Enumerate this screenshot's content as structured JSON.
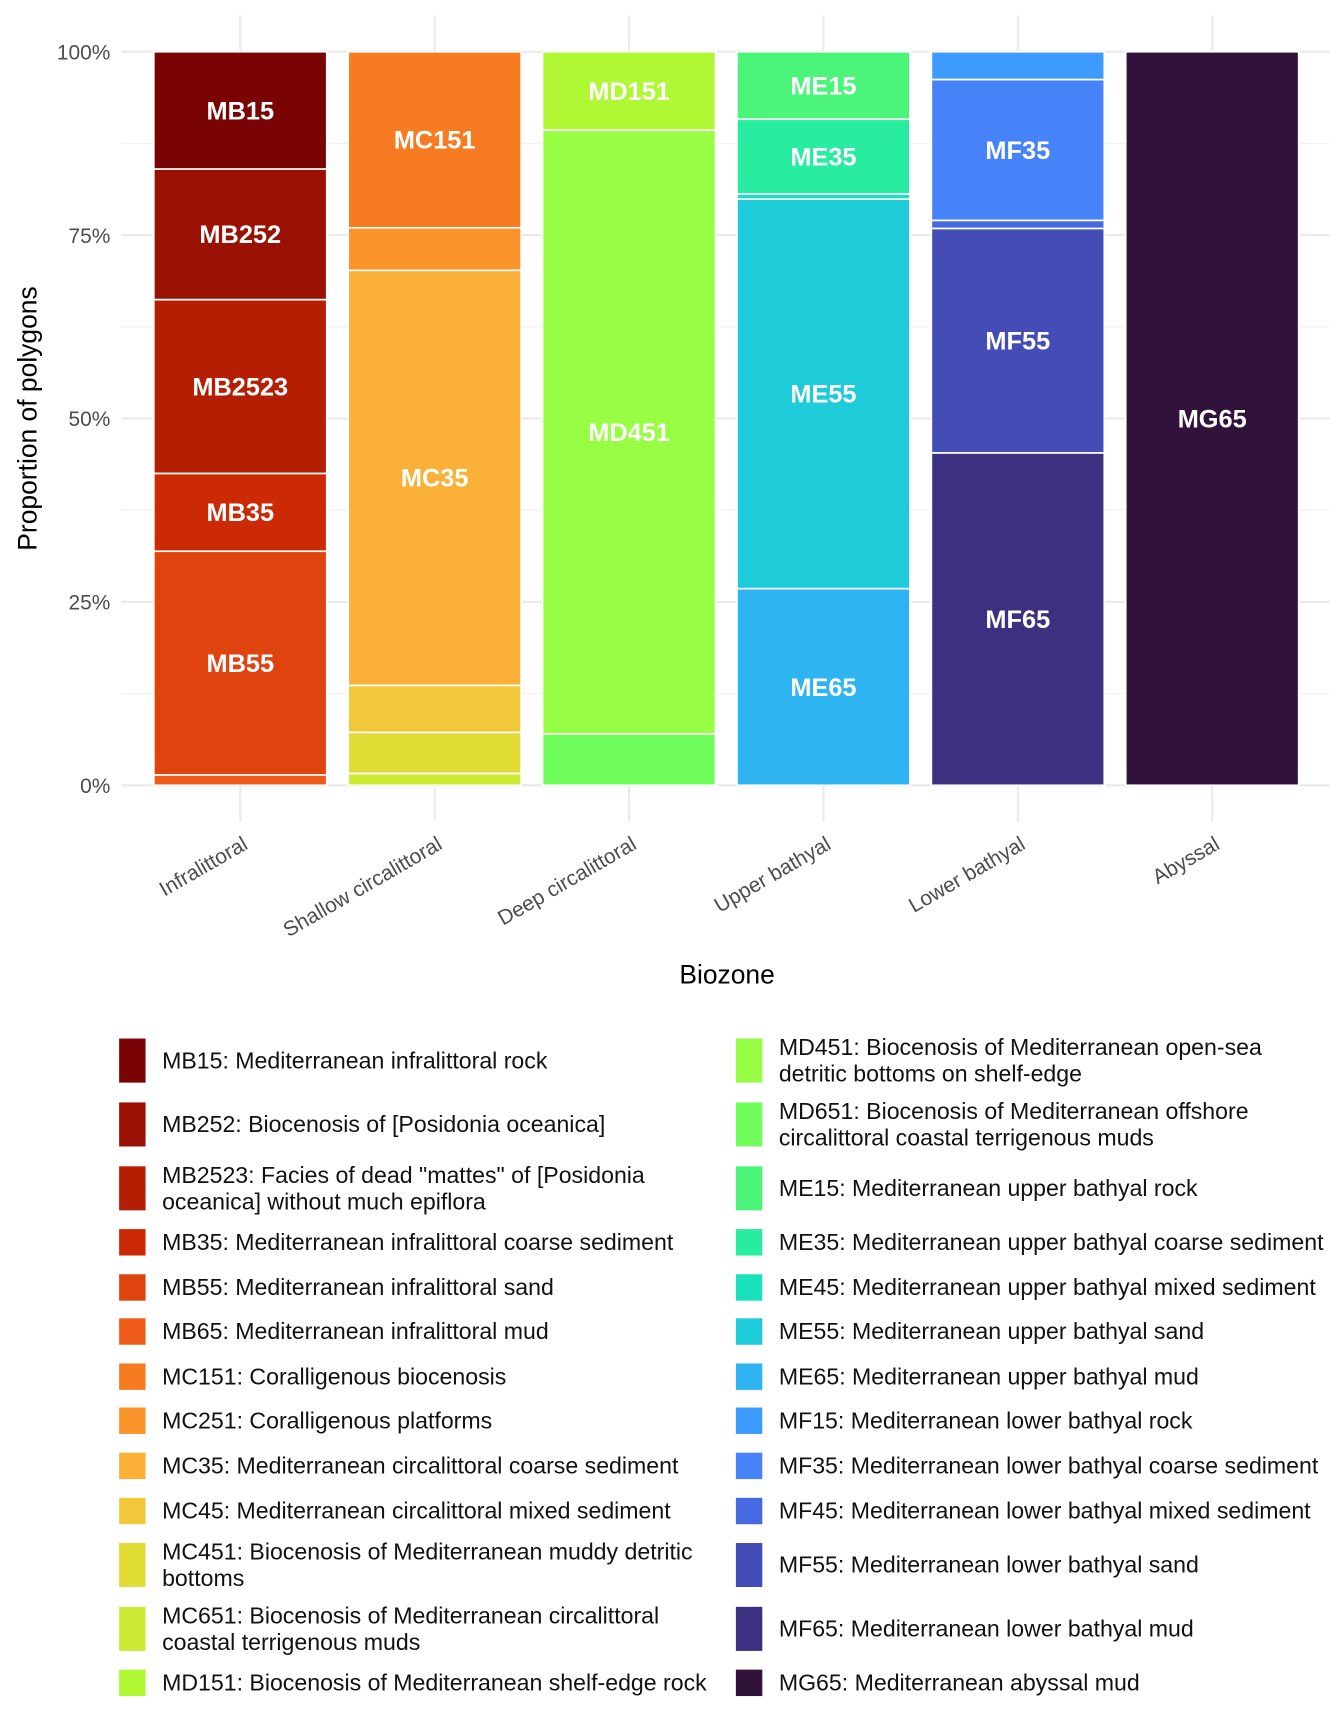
{
  "chart_data": {
    "type": "bar",
    "stacked": true,
    "xlabel": "Biozone",
    "ylabel": "Proportion of polygons",
    "ylim": [
      0,
      1
    ],
    "yticks": [
      0,
      0.25,
      0.5,
      0.75,
      1
    ],
    "ytick_labels": [
      "0%",
      "25%",
      "50%",
      "75%",
      "100%"
    ],
    "grid": true,
    "legend_position": "bottom",
    "categories": [
      "Infralittoral",
      "Shallow circalittoral",
      "Deep circalittoral",
      "Upper bathyal",
      "Lower bathyal",
      "Abyssal"
    ],
    "bars": [
      {
        "category": "Infralittoral",
        "segments": [
          {
            "code": "MB15",
            "value": 0.16,
            "label": "MB15"
          },
          {
            "code": "MB252",
            "value": 0.178,
            "label": "MB252"
          },
          {
            "code": "MB2523",
            "value": 0.237,
            "label": "MB2523"
          },
          {
            "code": "MB35",
            "value": 0.106,
            "label": "MB35"
          },
          {
            "code": "MB55",
            "value": 0.305,
            "label": "MB55"
          },
          {
            "code": "MB65",
            "value": 0.014
          }
        ]
      },
      {
        "category": "Shallow circalittoral",
        "segments": [
          {
            "code": "MC151",
            "value": 0.24,
            "label": "MC151"
          },
          {
            "code": "MC251",
            "value": 0.058
          },
          {
            "code": "MC35",
            "value": 0.566,
            "label": "MC35"
          },
          {
            "code": "MC45",
            "value": 0.064
          },
          {
            "code": "MC451",
            "value": 0.056
          },
          {
            "code": "MC651",
            "value": 0.016
          }
        ]
      },
      {
        "category": "Deep circalittoral",
        "segments": [
          {
            "code": "MD151",
            "value": 0.107,
            "label": "MD151"
          },
          {
            "code": "MD451",
            "value": 0.823,
            "label": "MD451"
          },
          {
            "code": "MD651",
            "value": 0.07
          }
        ]
      },
      {
        "category": "Upper bathyal",
        "segments": [
          {
            "code": "ME15",
            "value": 0.092,
            "label": "ME15"
          },
          {
            "code": "ME35",
            "value": 0.102,
            "label": "ME35"
          },
          {
            "code": "ME45",
            "value": 0.007
          },
          {
            "code": "ME55",
            "value": 0.531,
            "label": "ME55"
          },
          {
            "code": "ME65",
            "value": 0.268,
            "label": "ME65"
          }
        ]
      },
      {
        "category": "Lower bathyal",
        "segments": [
          {
            "code": "MF15",
            "value": 0.038
          },
          {
            "code": "MF35",
            "value": 0.192,
            "label": "MF35"
          },
          {
            "code": "MF45",
            "value": 0.011
          },
          {
            "code": "MF55",
            "value": 0.306,
            "label": "MF55"
          },
          {
            "code": "MF65",
            "value": 0.453,
            "label": "MF65"
          }
        ]
      },
      {
        "category": "Abyssal",
        "segments": [
          {
            "code": "MG65",
            "value": 1.0,
            "label": "MG65"
          }
        ]
      }
    ],
    "legend": [
      {
        "code": "MB15",
        "color": "#7a0403",
        "lines": [
          "MB15: Mediterranean infralittoral rock"
        ]
      },
      {
        "code": "MB252",
        "color": "#9a1002",
        "lines": [
          "MB252: Biocenosis of [Posidonia oceanica]"
        ]
      },
      {
        "code": "MB2523",
        "color": "#b51e02",
        "lines": [
          "MB2523: Facies of dead \"mattes\" of [Posidonia",
          "oceanica] without much epiflora"
        ]
      },
      {
        "code": "MB35",
        "color": "#cb2a04",
        "lines": [
          "MB35: Mediterranean infralittoral coarse sediment"
        ]
      },
      {
        "code": "MB55",
        "color": "#e0440e",
        "lines": [
          "MB55: Mediterranean infralittoral sand"
        ]
      },
      {
        "code": "MB65",
        "color": "#ee5a17",
        "lines": [
          "MB65: Mediterranean infralittoral mud"
        ]
      },
      {
        "code": "MC151",
        "color": "#f77b20",
        "lines": [
          "MC151: Coralligenous biocenosis"
        ]
      },
      {
        "code": "MC251",
        "color": "#fb942a",
        "lines": [
          "MC251: Coralligenous platforms"
        ]
      },
      {
        "code": "MC35",
        "color": "#fbb138",
        "lines": [
          "MC35: Mediterranean circalittoral coarse sediment"
        ]
      },
      {
        "code": "MC45",
        "color": "#f2c83b",
        "lines": [
          "MC45: Mediterranean circalittoral mixed sediment"
        ]
      },
      {
        "code": "MC451",
        "color": "#e0dc35",
        "lines": [
          "MC451: Biocenosis of Mediterranean muddy detritic",
          "bottoms"
        ]
      },
      {
        "code": "MC651",
        "color": "#cdeb34",
        "lines": [
          "MC651: Biocenosis of Mediterranean circalittoral",
          "coastal terrigenous muds"
        ]
      },
      {
        "code": "MD151",
        "color": "#b0f834",
        "lines": [
          "MD151: Biocenosis of Mediterranean shelf-edge rock"
        ]
      },
      {
        "code": "MD451",
        "color": "#97fe44",
        "lines": [
          "MD451: Biocenosis of Mediterranean open-sea",
          "detritic bottoms on shelf-edge"
        ]
      },
      {
        "code": "MD651",
        "color": "#70fe5c",
        "lines": [
          "MD651: Biocenosis of Mediterranean offshore",
          "circalittoral coastal terrigenous muds"
        ]
      },
      {
        "code": "ME15",
        "color": "#4bf57a",
        "lines": [
          "ME15: Mediterranean upper bathyal rock"
        ]
      },
      {
        "code": "ME35",
        "color": "#28eda0",
        "lines": [
          "ME35: Mediterranean upper bathyal coarse sediment"
        ]
      },
      {
        "code": "ME45",
        "color": "#1ae0bb",
        "lines": [
          "ME45: Mediterranean upper bathyal mixed sediment"
        ]
      },
      {
        "code": "ME55",
        "color": "#1ecbd8",
        "lines": [
          "ME55: Mediterranean upper bathyal sand"
        ]
      },
      {
        "code": "ME65",
        "color": "#2eb4f0",
        "lines": [
          "ME65: Mediterranean upper bathyal mud"
        ]
      },
      {
        "code": "MF15",
        "color": "#3e9bfe",
        "lines": [
          "MF15: Mediterranean lower bathyal rock"
        ]
      },
      {
        "code": "MF35",
        "color": "#4683f8",
        "lines": [
          "MF35: Mediterranean lower bathyal coarse sediment"
        ]
      },
      {
        "code": "MF45",
        "color": "#4668e0",
        "lines": [
          "MF45: Mediterranean lower bathyal mixed sediment"
        ]
      },
      {
        "code": "MF55",
        "color": "#434db5",
        "lines": [
          "MF55: Mediterranean lower bathyal sand"
        ]
      },
      {
        "code": "MF65",
        "color": "#3c3181",
        "lines": [
          "MF65: Mediterranean lower bathyal mud"
        ]
      },
      {
        "code": "MG65",
        "color": "#30123b",
        "lines": [
          "MG65: Mediterranean abyssal mud"
        ]
      }
    ]
  }
}
